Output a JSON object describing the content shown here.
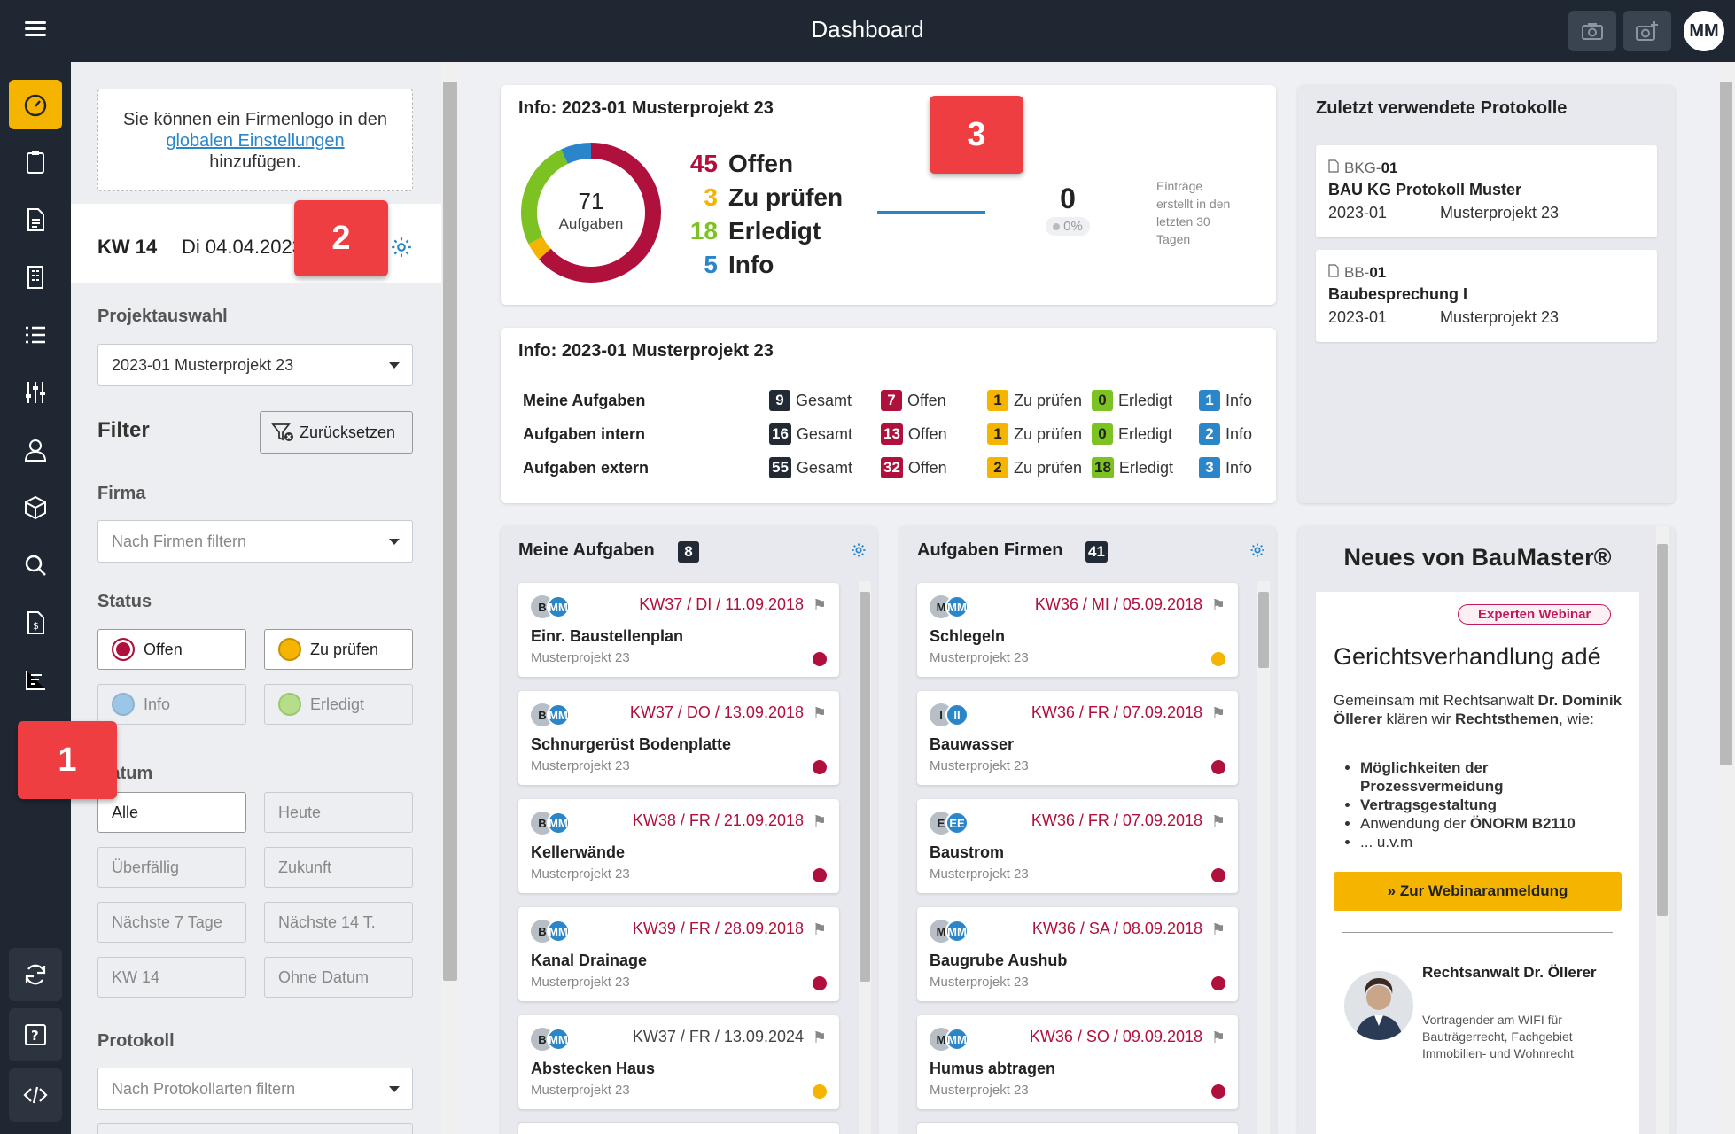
{
  "topbar": {
    "title": "Dashboard",
    "avatar": "MM"
  },
  "rail": {
    "items": [
      "dashboard-icon",
      "clipboard-icon",
      "document-icon",
      "building-icon",
      "list-icon",
      "sliders-icon",
      "user-icon",
      "cube-icon",
      "search-icon",
      "invoice-icon",
      "chart-icon"
    ],
    "bottom": [
      "refresh-icon",
      "help-icon",
      "code-icon"
    ]
  },
  "filter": {
    "logo_text_1": "Sie können ein Firmenlogo in den",
    "logo_link": "globalen Einstellungen",
    "logo_text_2": "hinzufügen.",
    "week": "KW 14",
    "date": "Di 04.04.2023",
    "project_label": "Projektauswahl",
    "project_value": "2023-01 Musterprojekt 23",
    "filter_title": "Filter",
    "reset": "Zurücksetzen",
    "firma_label": "Firma",
    "firma_placeholder": "Nach Firmen filtern",
    "status_label": "Status",
    "status": [
      "Offen",
      "Zu prüfen",
      "Info",
      "Erledigt"
    ],
    "datum_label": "Datum",
    "datum": [
      "Alle",
      "Heute",
      "Überfällig",
      "Zukunft",
      "Nächste 7 Tage",
      "Nächste 14 T.",
      "KW 14",
      "Ohne Datum"
    ],
    "protokoll_label": "Protokoll",
    "protokoll_placeholder": "Nach Protokollarten filtern"
  },
  "info1": {
    "title": "Info: 2023-01 Musterprojekt 23",
    "total": "71",
    "total_label": "Aufgaben",
    "stats": [
      {
        "n": "45",
        "label": "Offen",
        "color": "#b0103c"
      },
      {
        "n": "3",
        "label": "Zu prüfen",
        "color": "#f5b400"
      },
      {
        "n": "18",
        "label": "Erledigt",
        "color": "#7cc223"
      },
      {
        "n": "5",
        "label": "Info",
        "color": "#2a86c8"
      }
    ],
    "entries": "0",
    "entries_pct": "0%",
    "entries_text": [
      "Einträge",
      "erstellt in den",
      "letzten 30",
      "Tagen"
    ]
  },
  "chart_data": {
    "type": "pie",
    "categories": [
      "Offen",
      "Zu prüfen",
      "Erledigt",
      "Info"
    ],
    "values": [
      45,
      3,
      18,
      5
    ],
    "colors": [
      "#b0103c",
      "#f5b400",
      "#7cc223",
      "#2a86c8"
    ]
  },
  "info2": {
    "title": "Info: 2023-01 Musterprojekt 23",
    "rows": [
      {
        "label": "Meine Aufgaben",
        "gesamt": "9",
        "offen": "7",
        "pruefen": "1",
        "erledigt": "0",
        "info": "1"
      },
      {
        "label": "Aufgaben intern",
        "gesamt": "16",
        "offen": "13",
        "pruefen": "1",
        "erledigt": "0",
        "info": "2"
      },
      {
        "label": "Aufgaben extern",
        "gesamt": "55",
        "offen": "32",
        "pruefen": "2",
        "erledigt": "18",
        "info": "3"
      }
    ],
    "col": {
      "gesamt": "Gesamt",
      "offen": "Offen",
      "pruefen": "Zu prüfen",
      "erledigt": "Erledigt",
      "info": "Info"
    }
  },
  "recent": {
    "title": "Zuletzt verwendete Protokolle",
    "items": [
      {
        "code_a": "BKG-",
        "code_b": "01",
        "name": "BAU KG Protokoll Muster",
        "num": "2023-01",
        "proj": "Musterprojekt 23"
      },
      {
        "code_a": "BB-",
        "code_b": "01",
        "name": "Baubesprechung I",
        "num": "2023-01",
        "proj": "Musterprojekt 23"
      }
    ]
  },
  "mytasks": {
    "title": "Meine Aufgaben",
    "count": "8",
    "items": [
      {
        "a": "B",
        "b": "MM",
        "date": "KW37 / DI / 11.09.2018",
        "name": "Einr. Baustellenplan",
        "proj": "Musterprojekt 23",
        "dot": "#b0103c",
        "dc": "#b0103c"
      },
      {
        "a": "B",
        "b": "MM",
        "date": "KW37 / DO / 13.09.2018",
        "name": "Schnurgerüst Bodenplatte",
        "proj": "Musterprojekt 23",
        "dot": "#b0103c",
        "dc": "#b0103c"
      },
      {
        "a": "B",
        "b": "MM",
        "date": "KW38 / FR / 21.09.2018",
        "name": "Kellerwände",
        "proj": "Musterprojekt 23",
        "dot": "#b0103c",
        "dc": "#b0103c"
      },
      {
        "a": "B",
        "b": "MM",
        "date": "KW39 / FR / 28.09.2018",
        "name": "Kanal Drainage",
        "proj": "Musterprojekt 23",
        "dot": "#b0103c",
        "dc": "#b0103c"
      },
      {
        "a": "B",
        "b": "MM",
        "date": "KW37 / FR / 13.09.2024",
        "name": "Abstecken Haus",
        "proj": "Musterprojekt 23",
        "dot": "#f5b400",
        "dc": "#444"
      }
    ]
  },
  "firmtasks": {
    "title": "Aufgaben Firmen",
    "count": "41",
    "items": [
      {
        "a": "M",
        "b": "MM",
        "date": "KW36 / MI / 05.09.2018",
        "name": "Schlegeln",
        "proj": "Musterprojekt 23",
        "dot": "#f5b400",
        "dc": "#b0103c"
      },
      {
        "a": "I",
        "b": "II",
        "date": "KW36 / FR / 07.09.2018",
        "name": "Bauwasser",
        "proj": "Musterprojekt 23",
        "dot": "#b0103c",
        "dc": "#b0103c"
      },
      {
        "a": "E",
        "b": "EE",
        "date": "KW36 / FR / 07.09.2018",
        "name": "Baustrom",
        "proj": "Musterprojekt 23",
        "dot": "#b0103c",
        "dc": "#b0103c"
      },
      {
        "a": "M",
        "b": "MM",
        "date": "KW36 / SA / 08.09.2018",
        "name": "Baugrube Aushub",
        "proj": "Musterprojekt 23",
        "dot": "#b0103c",
        "dc": "#b0103c"
      },
      {
        "a": "M",
        "b": "MM",
        "date": "KW36 / SO / 09.09.2018",
        "name": "Humus abtragen",
        "proj": "Musterprojekt 23",
        "dot": "#b0103c",
        "dc": "#b0103c"
      }
    ]
  },
  "news": {
    "title": "Neues von BauMaster®",
    "tag": "Experten Webinar",
    "headline": "Gerichtsverhandlung adé",
    "intro_1": "Gemeinsam mit Rechtsanwalt ",
    "intro_b1": "Dr. Dominik Öllerer",
    "intro_2": " klären wir ",
    "intro_b2": "Rechtsthemen",
    "intro_3": ", wie:",
    "bullets": [
      {
        "b": "Möglichkeiten der Prozessvermeidung",
        "t": ""
      },
      {
        "b": "Vertragsgestaltung",
        "t": ""
      },
      {
        "b": "ÖNORM B2110",
        "t": "Anwendung der "
      },
      {
        "b": "",
        "t": "... u.v.m"
      }
    ],
    "cta": "» Zur Webinaranmeldung",
    "speaker": "Rechtsanwalt Dr. Öllerer",
    "speaker_desc": "Vortragender am WIFI für Bauträgerrecht, Fachgebiet Immobilien- und Wohnrecht"
  },
  "markers": [
    "1",
    "2",
    "3"
  ]
}
